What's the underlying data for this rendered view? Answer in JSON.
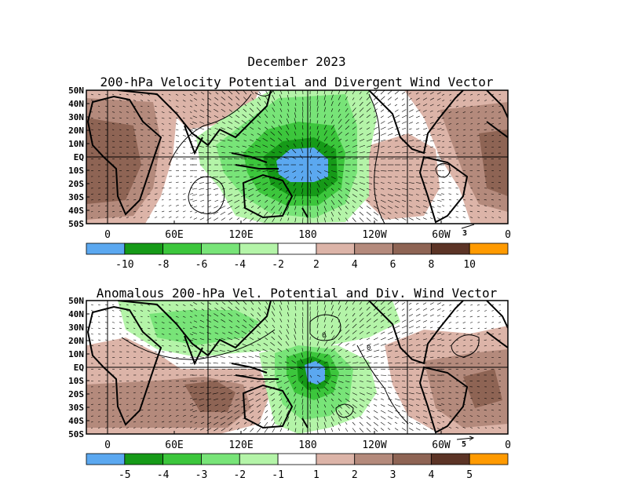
{
  "figure": {
    "title": "December 2023"
  },
  "panels": [
    {
      "title": "200-hPa Velocity Potential and Divergent Wind Vector",
      "lat_labels": [
        "50N",
        "40N",
        "30N",
        "20N",
        "10N",
        "EQ",
        "10S",
        "20S",
        "30S",
        "40S",
        "50S"
      ],
      "lon_labels": [
        "0",
        "60E",
        "120E",
        "180",
        "120W",
        "60W",
        "0"
      ],
      "vector_ref": "3",
      "colorbar": {
        "colors": [
          "#5ba8f0",
          "#169a18",
          "#3cc63c",
          "#78e478",
          "#b4f4a8",
          "#ffffff",
          "#dcb4a8",
          "#b48a7c",
          "#8e6454",
          "#5c3426",
          "#ff9a00"
        ],
        "labels": [
          "-10",
          "-8",
          "-6",
          "-4",
          "-2",
          "2",
          "4",
          "6",
          "8",
          "10"
        ]
      }
    },
    {
      "title": "Anomalous 200-hPa Vel. Potential and Div. Wind Vector",
      "lat_labels": [
        "50N",
        "40N",
        "30N",
        "20N",
        "10N",
        "EQ",
        "10S",
        "20S",
        "30S",
        "40S",
        "50S"
      ],
      "lon_labels": [
        "0",
        "60E",
        "120E",
        "180",
        "120W",
        "60W",
        "0"
      ],
      "vector_ref": "5",
      "colorbar": {
        "colors": [
          "#5ba8f0",
          "#169a18",
          "#3cc63c",
          "#78e478",
          "#b4f4a8",
          "#ffffff",
          "#dcb4a8",
          "#b48a7c",
          "#8e6454",
          "#5c3426",
          "#ff9a00"
        ],
        "labels": [
          "-5",
          "-4",
          "-3",
          "-2",
          "-1",
          "1",
          "2",
          "3",
          "4",
          "5"
        ]
      }
    }
  ],
  "contour_labels": [
    "0",
    "0"
  ]
}
